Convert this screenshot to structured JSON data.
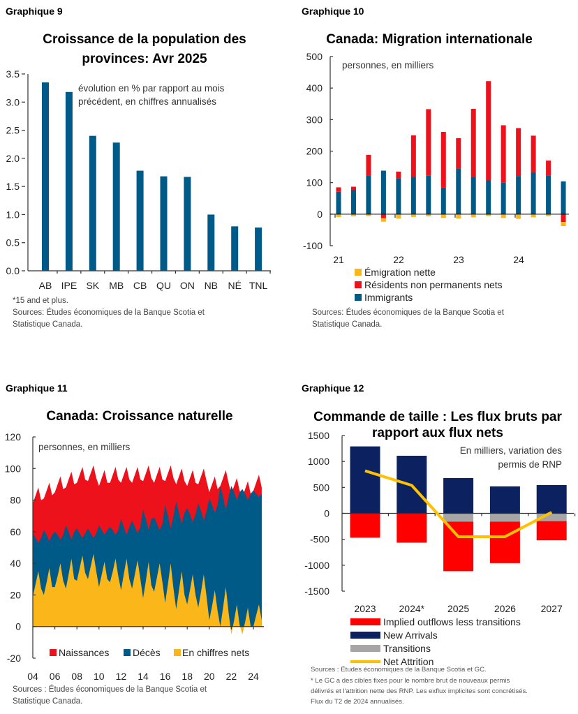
{
  "colors": {
    "blue": "#005a87",
    "red": "#ec111a",
    "yellow": "#fbb619",
    "navy": "#0b2160",
    "gray": "#a6a6a6",
    "line": "#ffc000"
  },
  "chart_data": [
    {
      "id": "g9",
      "label": "Graphique 9",
      "type": "bar",
      "title": [
        "Croissance de la population des",
        "provinces: Avr 2025"
      ],
      "note": [
        "évolution en % par rapport au mois",
        "précédent, en chiffres annualisés"
      ],
      "categories": [
        "AB",
        "IPE",
        "SK",
        "MB",
        "CB",
        "QU",
        "ON",
        "NB",
        "NÉ",
        "TNL"
      ],
      "values": [
        3.35,
        3.18,
        2.4,
        2.28,
        1.78,
        1.68,
        1.67,
        1.0,
        0.79,
        0.77
      ],
      "ylim": [
        0,
        3.5
      ],
      "yticks": [
        "0.0",
        "0.5",
        "1.0",
        "1.5",
        "2.0",
        "2.5",
        "3.0",
        "3.5"
      ],
      "footnotes": [
        "*15 and et plus.",
        "Sources: Études économiques de la Banque Scotia et",
        "Statistique Canada."
      ]
    },
    {
      "id": "g10",
      "label": "Graphique 10",
      "type": "bar",
      "stacked": true,
      "title": "Canada: Migration internationale",
      "note": "personnes, en milliers",
      "ylim": [
        -100,
        500
      ],
      "yticks": [
        "-100",
        "0",
        "100",
        "200",
        "300",
        "400",
        "500"
      ],
      "xtick_labels": [
        "21",
        "22",
        "23",
        "24"
      ],
      "periods": [
        "2021T1",
        "2021T2",
        "2021T3",
        "2021T4",
        "2022T1",
        "2022T2",
        "2022T3",
        "2022T4",
        "2023T1",
        "2023T2",
        "2023T3",
        "2023T4",
        "2024T1",
        "2024T2",
        "2024T3",
        "2024T4"
      ],
      "series": [
        {
          "name": "Émigration nette",
          "values": [
            -9,
            -7,
            -6,
            -11,
            -14,
            -9,
            -7,
            -12,
            -14,
            -10,
            -6,
            -12,
            -15,
            -10,
            -6,
            -13
          ]
        },
        {
          "name": "Résidents non permanents nets",
          "values": [
            14,
            11,
            65,
            -13,
            21,
            132,
            211,
            177,
            96,
            216,
            315,
            182,
            152,
            116,
            47,
            -25
          ]
        },
        {
          "name": "Immigrants",
          "values": [
            71,
            76,
            123,
            138,
            114,
            118,
            122,
            84,
            145,
            118,
            107,
            100,
            121,
            133,
            123,
            104
          ]
        }
      ],
      "footnotes": [
        "Sources: Études économiques de la Banque Scotia et",
        "Statistique Canada."
      ]
    },
    {
      "id": "g11",
      "label": "Graphique 11",
      "type": "area",
      "title": "Canada: Croissance naturelle",
      "note": "personnes, en milliers",
      "ylim": [
        -20,
        120
      ],
      "yticks": [
        "-20",
        "0",
        "20",
        "40",
        "60",
        "80",
        "100",
        "120"
      ],
      "xtick_labels": [
        "04",
        "06",
        "08",
        "10",
        "12",
        "14",
        "16",
        "18",
        "20",
        "22",
        "24"
      ],
      "x_start": "2004T1",
      "frequency": "quarterly",
      "series": [
        {
          "name": "Naissances",
          "values": [
            78,
            83,
            88,
            80,
            81,
            86,
            91,
            83,
            85,
            90,
            95,
            87,
            88,
            93,
            98,
            90,
            91,
            96,
            101,
            93,
            92,
            97,
            102,
            94,
            89,
            94,
            99,
            91,
            91,
            96,
            101,
            93,
            91,
            96,
            101,
            93,
            91,
            96,
            101,
            93,
            92,
            97,
            102,
            94,
            91,
            96,
            101,
            93,
            92,
            97,
            102,
            94,
            90,
            95,
            100,
            92,
            89,
            94,
            99,
            91,
            90,
            95,
            100,
            92,
            85,
            90,
            95,
            87,
            89,
            94,
            99,
            91,
            84,
            89,
            94,
            86,
            82,
            87,
            92,
            84,
            86,
            91,
            96,
            88
          ]
        },
        {
          "name": "Décès",
          "values": [
            59,
            56,
            53,
            56,
            61,
            58,
            54,
            58,
            60,
            58,
            55,
            58,
            64,
            60,
            55,
            60,
            62,
            59,
            56,
            59,
            62,
            59,
            56,
            59,
            64,
            61,
            58,
            61,
            63,
            61,
            58,
            61,
            68,
            63,
            58,
            63,
            67,
            63,
            59,
            63,
            74,
            68,
            61,
            68,
            69,
            65,
            61,
            65,
            77,
            70,
            62,
            70,
            79,
            72,
            65,
            72,
            75,
            71,
            66,
            71,
            78,
            73,
            67,
            73,
            81,
            77,
            72,
            77,
            89,
            82,
            74,
            82,
            89,
            85,
            80,
            85,
            87,
            84,
            80,
            84,
            86,
            84,
            82,
            84
          ]
        },
        {
          "name": "En chiffres nets",
          "values": [
            19,
            27,
            35,
            24,
            20,
            28,
            37,
            25,
            25,
            32,
            40,
            29,
            24,
            33,
            43,
            30,
            29,
            37,
            45,
            34,
            30,
            38,
            46,
            35,
            25,
            33,
            41,
            30,
            28,
            35,
            43,
            32,
            23,
            33,
            43,
            30,
            24,
            33,
            42,
            30,
            18,
            29,
            41,
            26,
            22,
            31,
            40,
            28,
            15,
            27,
            40,
            24,
            11,
            23,
            35,
            20,
            14,
            23,
            33,
            20,
            12,
            22,
            33,
            19,
            4,
            13,
            23,
            10,
            0,
            12,
            25,
            9,
            -5,
            4,
            14,
            1,
            -5,
            3,
            12,
            0,
            0,
            7,
            14,
            4
          ]
        }
      ],
      "footnotes": [
        "Sources : Études économiques de la Banque Scotia et",
        "Statistique Canada."
      ]
    },
    {
      "id": "g12",
      "label": "Graphique 12",
      "type": "bar",
      "stacked": true,
      "title": [
        "Commande de taille : Les flux bruts par",
        "rapport aux flux nets"
      ],
      "note": [
        "En milliers, variation des",
        "permis de RNP"
      ],
      "ylim": [
        -1500,
        1500
      ],
      "yticks": [
        "-1500",
        "-1000",
        "-500",
        "0",
        "500",
        "1000",
        "1500"
      ],
      "categories": [
        "2023",
        "2024*",
        "2025",
        "2026",
        "2027"
      ],
      "series": [
        {
          "name": "Implied outflows less transitions",
          "type": "bar",
          "values": [
            -470,
            -565,
            -955,
            -800,
            -370
          ]
        },
        {
          "name": "New Arrivals",
          "type": "bar",
          "values": [
            1290,
            1110,
            680,
            520,
            545
          ]
        },
        {
          "name": "Transitions",
          "type": "bar",
          "values": [
            0,
            0,
            -160,
            -160,
            -150
          ]
        },
        {
          "name": "Net Attrition",
          "type": "line",
          "values": [
            820,
            540,
            -450,
            -450,
            20
          ]
        }
      ],
      "footnotes": [
        "Sources : Études économiques de la Banque Scotia et GC.",
        "* Le GC a des cibles fixes pour le nombre brut de nouveaux permis",
        "délivrés et l'attrition nette des RNP. Les exflux implicites sont concrétisés.",
        "Flux du T2 de 2024 annualisés."
      ]
    }
  ]
}
